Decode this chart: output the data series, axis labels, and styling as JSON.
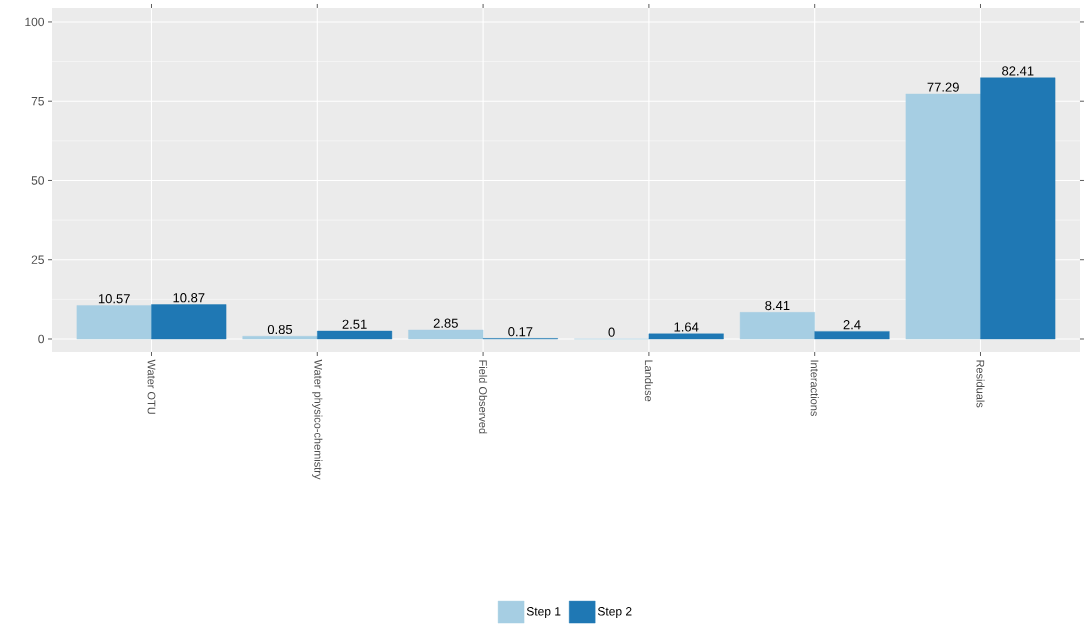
{
  "chart_data": {
    "type": "bar",
    "categories": [
      "Water OTU",
      "Water physico-chemistry",
      "Field Observed",
      "Landuse",
      "Interactions",
      "Residuals"
    ],
    "series": [
      {
        "name": "Step 1",
        "color": "#a6cee3",
        "values": [
          10.57,
          0.85,
          2.85,
          0,
          8.41,
          77.29
        ]
      },
      {
        "name": "Step 2",
        "color": "#1f78b4",
        "values": [
          10.87,
          2.51,
          0.17,
          1.64,
          2.4,
          82.41
        ]
      }
    ],
    "ylim": [
      -4.1,
      104.4
    ],
    "yticks": [
      0,
      25,
      50,
      75,
      100
    ],
    "grid": true,
    "legend": "bottom",
    "data_labels": true
  }
}
